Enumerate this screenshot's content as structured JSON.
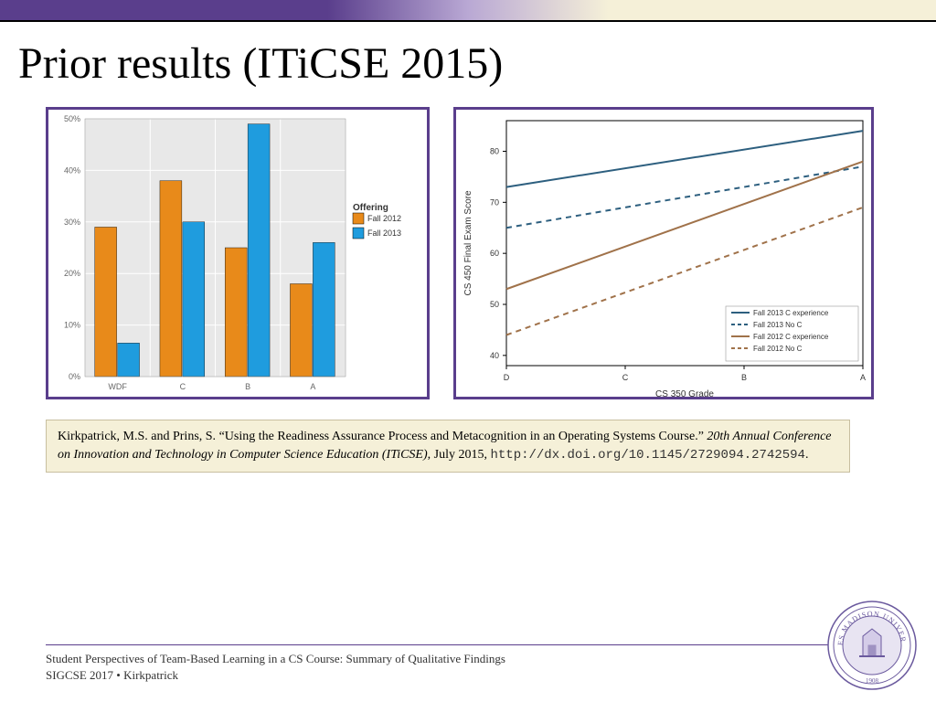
{
  "title": "Prior results (ITiCSE 2015)",
  "bar_chart": {
    "type": "grouped_bar",
    "plot_bg": "#e8e8e8",
    "grid_color": "#ffffff",
    "border_color": "#5a3e8c",
    "categories": [
      "WDF",
      "C",
      "B",
      "A"
    ],
    "ylim": [
      0,
      50
    ],
    "ytick_step": 10,
    "ytick_suffix": "%",
    "series": [
      {
        "name": "Fall 2012",
        "color": "#e88a1a",
        "values": [
          29,
          38,
          25,
          18
        ]
      },
      {
        "name": "Fall 2013",
        "color": "#1f9cde",
        "values": [
          6.5,
          30,
          49,
          26
        ]
      }
    ],
    "legend_title": "Offering",
    "axis_label_fontsize": 10,
    "tick_fontsize": 9,
    "bar_group_width": 0.7
  },
  "line_chart": {
    "type": "line",
    "plot_bg": "#ffffff",
    "border_color": "#5a3e8c",
    "axis_border": "#000000",
    "xlabel": "CS 350 Grade",
    "ylabel": "CS 450 Final Exam Score",
    "x_categories": [
      "D",
      "C",
      "B",
      "A"
    ],
    "ylim": [
      38,
      86
    ],
    "yticks": [
      40,
      50,
      60,
      70,
      80
    ],
    "lines": [
      {
        "name": "Fall 2013 C experience",
        "color": "#2d5f7f",
        "dash": "solid",
        "y0": 73,
        "y1": 84
      },
      {
        "name": "Fall 2013 No C",
        "color": "#2d5f7f",
        "dash": "dashed",
        "y0": 65,
        "y1": 77
      },
      {
        "name": "Fall 2012 C experience",
        "color": "#a0724a",
        "dash": "solid",
        "y0": 53,
        "y1": 78
      },
      {
        "name": "Fall 2012 No C",
        "color": "#a0724a",
        "dash": "dashed",
        "y0": 44,
        "y1": 69
      }
    ],
    "legend_fontsize": 8,
    "axis_label_fontsize": 10,
    "tick_fontsize": 9
  },
  "citation": {
    "authors": "Kirkpatrick, M.S. and Prins, S. ",
    "title_quoted": "“Using the Readiness Assurance Process and Metacognition in an Operating Systems Course.” ",
    "venue_italic": "20th Annual Conference on Innovation and Technology in Computer Science Education (ITiCSE)",
    "date": ", July 2015, ",
    "url": "http://dx.doi.org/10.1145/2729094.2742594",
    "period": "."
  },
  "footer": {
    "line1": "Student Perspectives of Team-Based Learning in a CS Course: Summary of Qualitative Findings",
    "line2": "SIGCSE 2017 • Kirkpatrick"
  },
  "seal": {
    "outer_text": "JAMES MADISON UNIVERSITY",
    "year": "1908",
    "ring_color": "#6b5a9e",
    "inner_color": "#d4cce8"
  }
}
